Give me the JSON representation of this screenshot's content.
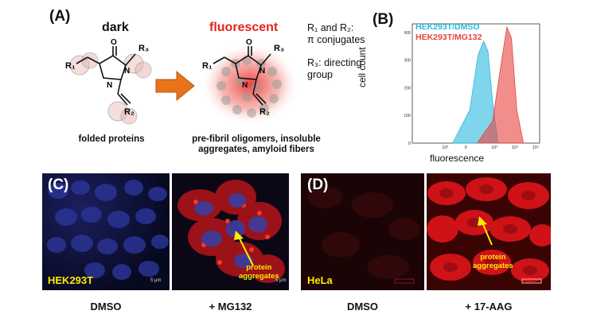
{
  "panel_a": {
    "label": "(A)",
    "dark_title": "dark",
    "fluor_title": "fluorescent",
    "left_caption": "folded proteins",
    "right_caption_1": "pre-fibril oligomers, insoluble",
    "right_caption_2": "aggregates, amyloid fibers",
    "r_note_1a": "R₁ and R₂:",
    "r_note_1b": "π conjugates",
    "r_note_2a": "R₃: directing",
    "r_note_2b": "group",
    "mol_O": "O",
    "mol_N1": "N",
    "mol_N2": "N",
    "mol_R1": "R₁",
    "mol_R2": "R₂",
    "mol_R3": "R₃",
    "colors": {
      "fluor_red": "#e8211d",
      "arrow_orange": "#e8731a"
    }
  },
  "panel_b": {
    "label": "(B)",
    "ylabel": "cell count",
    "xlabel": "fluorescence",
    "legend": [
      {
        "name": "HEK293T/DMSO",
        "color": "#29b9df"
      },
      {
        "name": "HEK293T/MG132",
        "color": "#e8433f"
      }
    ],
    "y_ticks": [
      "400",
      "300",
      "200",
      "100",
      "0"
    ],
    "x_ticks": [
      "10³",
      "0",
      "10³",
      "10⁴",
      "10⁵"
    ]
  },
  "panel_c": {
    "label": "(C)",
    "cell_line": "HEK293T",
    "agg_1": "protein",
    "agg_2": "aggregates",
    "scale_1": "5 μm",
    "scale_2": "5 μm",
    "cap_left": "DMSO",
    "cap_right": "+ MG132"
  },
  "panel_d": {
    "label": "(D)",
    "cell_line": "HeLa",
    "agg_1": "protein",
    "agg_2": "aggregates",
    "cap_left": "DMSO",
    "cap_right": "+ 17-AAG"
  },
  "chart_data": {
    "type": "area",
    "title": "",
    "xlabel": "fluorescence",
    "ylabel": "cell count",
    "x_scale": "log",
    "ylim": [
      0,
      420
    ],
    "series": [
      {
        "name": "HEK293T/DMSO",
        "x": [
          1000,
          2500,
          4000,
          5500,
          7000,
          9000,
          12000
        ],
        "y": [
          5,
          120,
          320,
          370,
          330,
          150,
          10
        ]
      },
      {
        "name": "HEK293T/MG132",
        "x": [
          4000,
          9000,
          15000,
          20000,
          26000,
          35000,
          50000
        ],
        "y": [
          5,
          80,
          300,
          420,
          380,
          120,
          5
        ]
      }
    ]
  }
}
